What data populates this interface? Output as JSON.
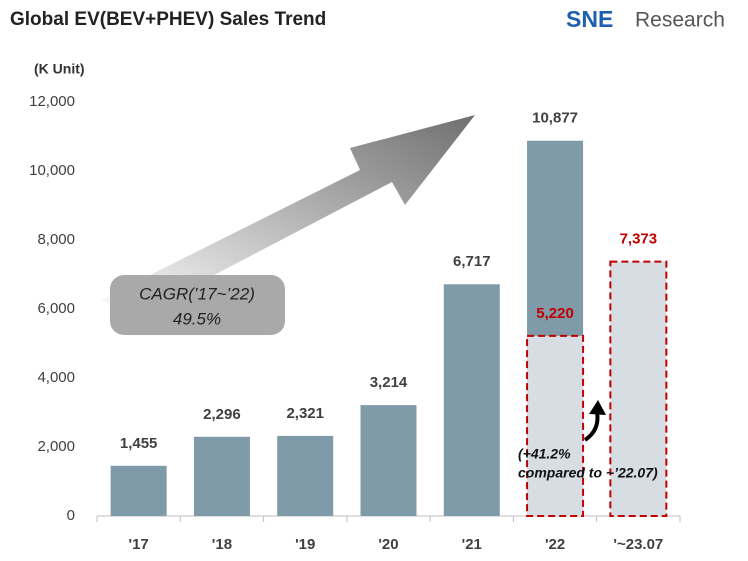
{
  "chart_data": {
    "type": "bar",
    "title": "Global EV(BEV+PHEV)  Sales Trend",
    "logo": {
      "brand": "SNE",
      "text": "Research"
    },
    "y_label": "(K Unit)",
    "categories": [
      "'17",
      "'18",
      "'19",
      "'20",
      "'21",
      "'22",
      "'~23.07"
    ],
    "series": [
      {
        "color": "#7f9aa8",
        "style": "solid",
        "label_color": "#404040",
        "values": [
          1455,
          2296,
          2321,
          3214,
          6717,
          10877,
          null
        ],
        "value_labels": [
          "1,455",
          "2,296",
          "2,321",
          "3,214",
          "6,717",
          "10,877",
          null
        ]
      },
      {
        "color": "#d6dee4",
        "style": "dashed",
        "border_color": "#c00000",
        "label_color": "#c00000",
        "values": [
          null,
          null,
          null,
          null,
          null,
          5220,
          7373
        ],
        "value_labels": [
          null,
          null,
          null,
          null,
          null,
          "5,220",
          "7,373"
        ]
      }
    ],
    "ylim": [
      0,
      12000
    ],
    "yticks": [
      0,
      {
        "value": 2000,
        "label": "2,000"
      },
      {
        "value": 4000,
        "label": "4,000"
      },
      {
        "value": 6000,
        "label": "6,000"
      },
      {
        "value": 8000,
        "label": "8,000"
      },
      {
        "value": 10000,
        "label": "10,000"
      },
      {
        "value": 12000,
        "label": "12,000"
      }
    ],
    "grid": false,
    "annotations": {
      "cagr": [
        "CAGR(’17~’22)",
        "49.5%"
      ],
      "growth": [
        "(+41.2%",
        "compared to ~’22.07)"
      ]
    }
  }
}
